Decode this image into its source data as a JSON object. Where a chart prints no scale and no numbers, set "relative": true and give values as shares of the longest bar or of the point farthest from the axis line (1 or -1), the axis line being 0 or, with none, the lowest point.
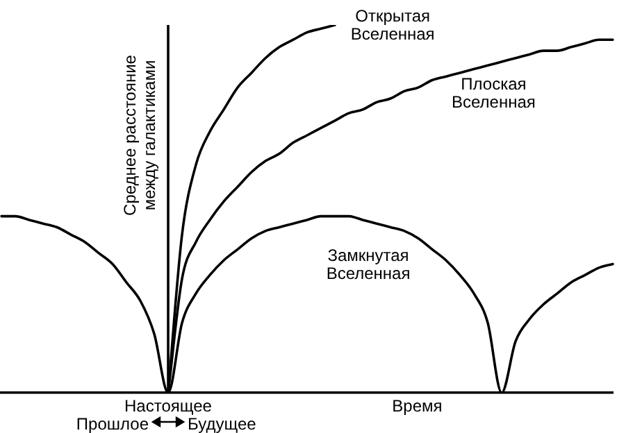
{
  "chart_data": {
    "type": "line",
    "relative": true,
    "xlabel": "Время",
    "ylabel": "Среднее расстояние между галактиками",
    "categories": [
      null,
      null,
      null,
      null,
      null,
      null,
      null,
      null,
      null,
      null,
      null,
      null,
      null,
      null,
      null,
      null,
      null,
      null,
      null,
      null,
      null,
      null,
      null,
      null,
      null,
      null,
      null,
      null,
      null,
      null,
      null,
      null,
      null,
      null,
      null,
      null,
      null,
      null,
      null,
      null,
      null,
      null,
      null,
      null,
      null
    ],
    "series": [
      {
        "name": "Открытая Вселенная",
        "color": "#000000",
        "values": [
          null,
          null,
          null,
          null,
          null,
          null,
          null,
          null,
          null,
          null,
          null,
          null,
          0,
          0.43,
          0.62,
          0.71,
          0.77,
          0.83,
          0.87,
          0.91,
          0.94,
          0.96,
          0.98,
          0.99,
          1.0,
          null,
          null,
          null,
          null,
          null,
          null,
          null,
          null,
          null,
          null,
          null,
          null,
          null,
          null,
          null,
          null,
          null,
          null,
          null,
          null
        ]
      },
      {
        "name": "Плоская Вселенная",
        "color": "#000000",
        "values": [
          null,
          null,
          null,
          null,
          null,
          null,
          null,
          null,
          null,
          null,
          null,
          null,
          0,
          0.31,
          0.41,
          0.47,
          0.52,
          0.56,
          0.6,
          0.63,
          0.65,
          0.68,
          0.7,
          0.72,
          0.74,
          0.76,
          0.77,
          0.79,
          0.8,
          0.82,
          0.83,
          0.85,
          0.86,
          0.87,
          0.88,
          0.89,
          0.9,
          0.91,
          0.92,
          0.93,
          0.93,
          0.94,
          0.95,
          0.96,
          0.96
        ]
      },
      {
        "name": "Замкнутая Вселенная",
        "color": "#000000",
        "values": [
          0.48,
          0.48,
          0.47,
          0.46,
          0.45,
          0.43,
          0.41,
          0.38,
          0.35,
          0.3,
          0.25,
          0.16,
          0,
          0.19,
          0.27,
          0.32,
          0.36,
          0.39,
          0.42,
          0.44,
          0.45,
          0.46,
          0.47,
          0.48,
          0.48,
          0.48,
          0.47,
          0.46,
          0.45,
          0.44,
          0.42,
          0.39,
          0.36,
          0.32,
          0.27,
          0.19,
          0,
          0.14,
          0.2,
          0.24,
          0.27,
          0.3,
          0.32,
          0.34,
          0.35
        ]
      }
    ],
    "annotations": [
      "Настоящее",
      "Прошлое",
      "Будущее"
    ],
    "grid": false,
    "legend": false,
    "marker": "none",
    "line_style": "solid"
  }
}
